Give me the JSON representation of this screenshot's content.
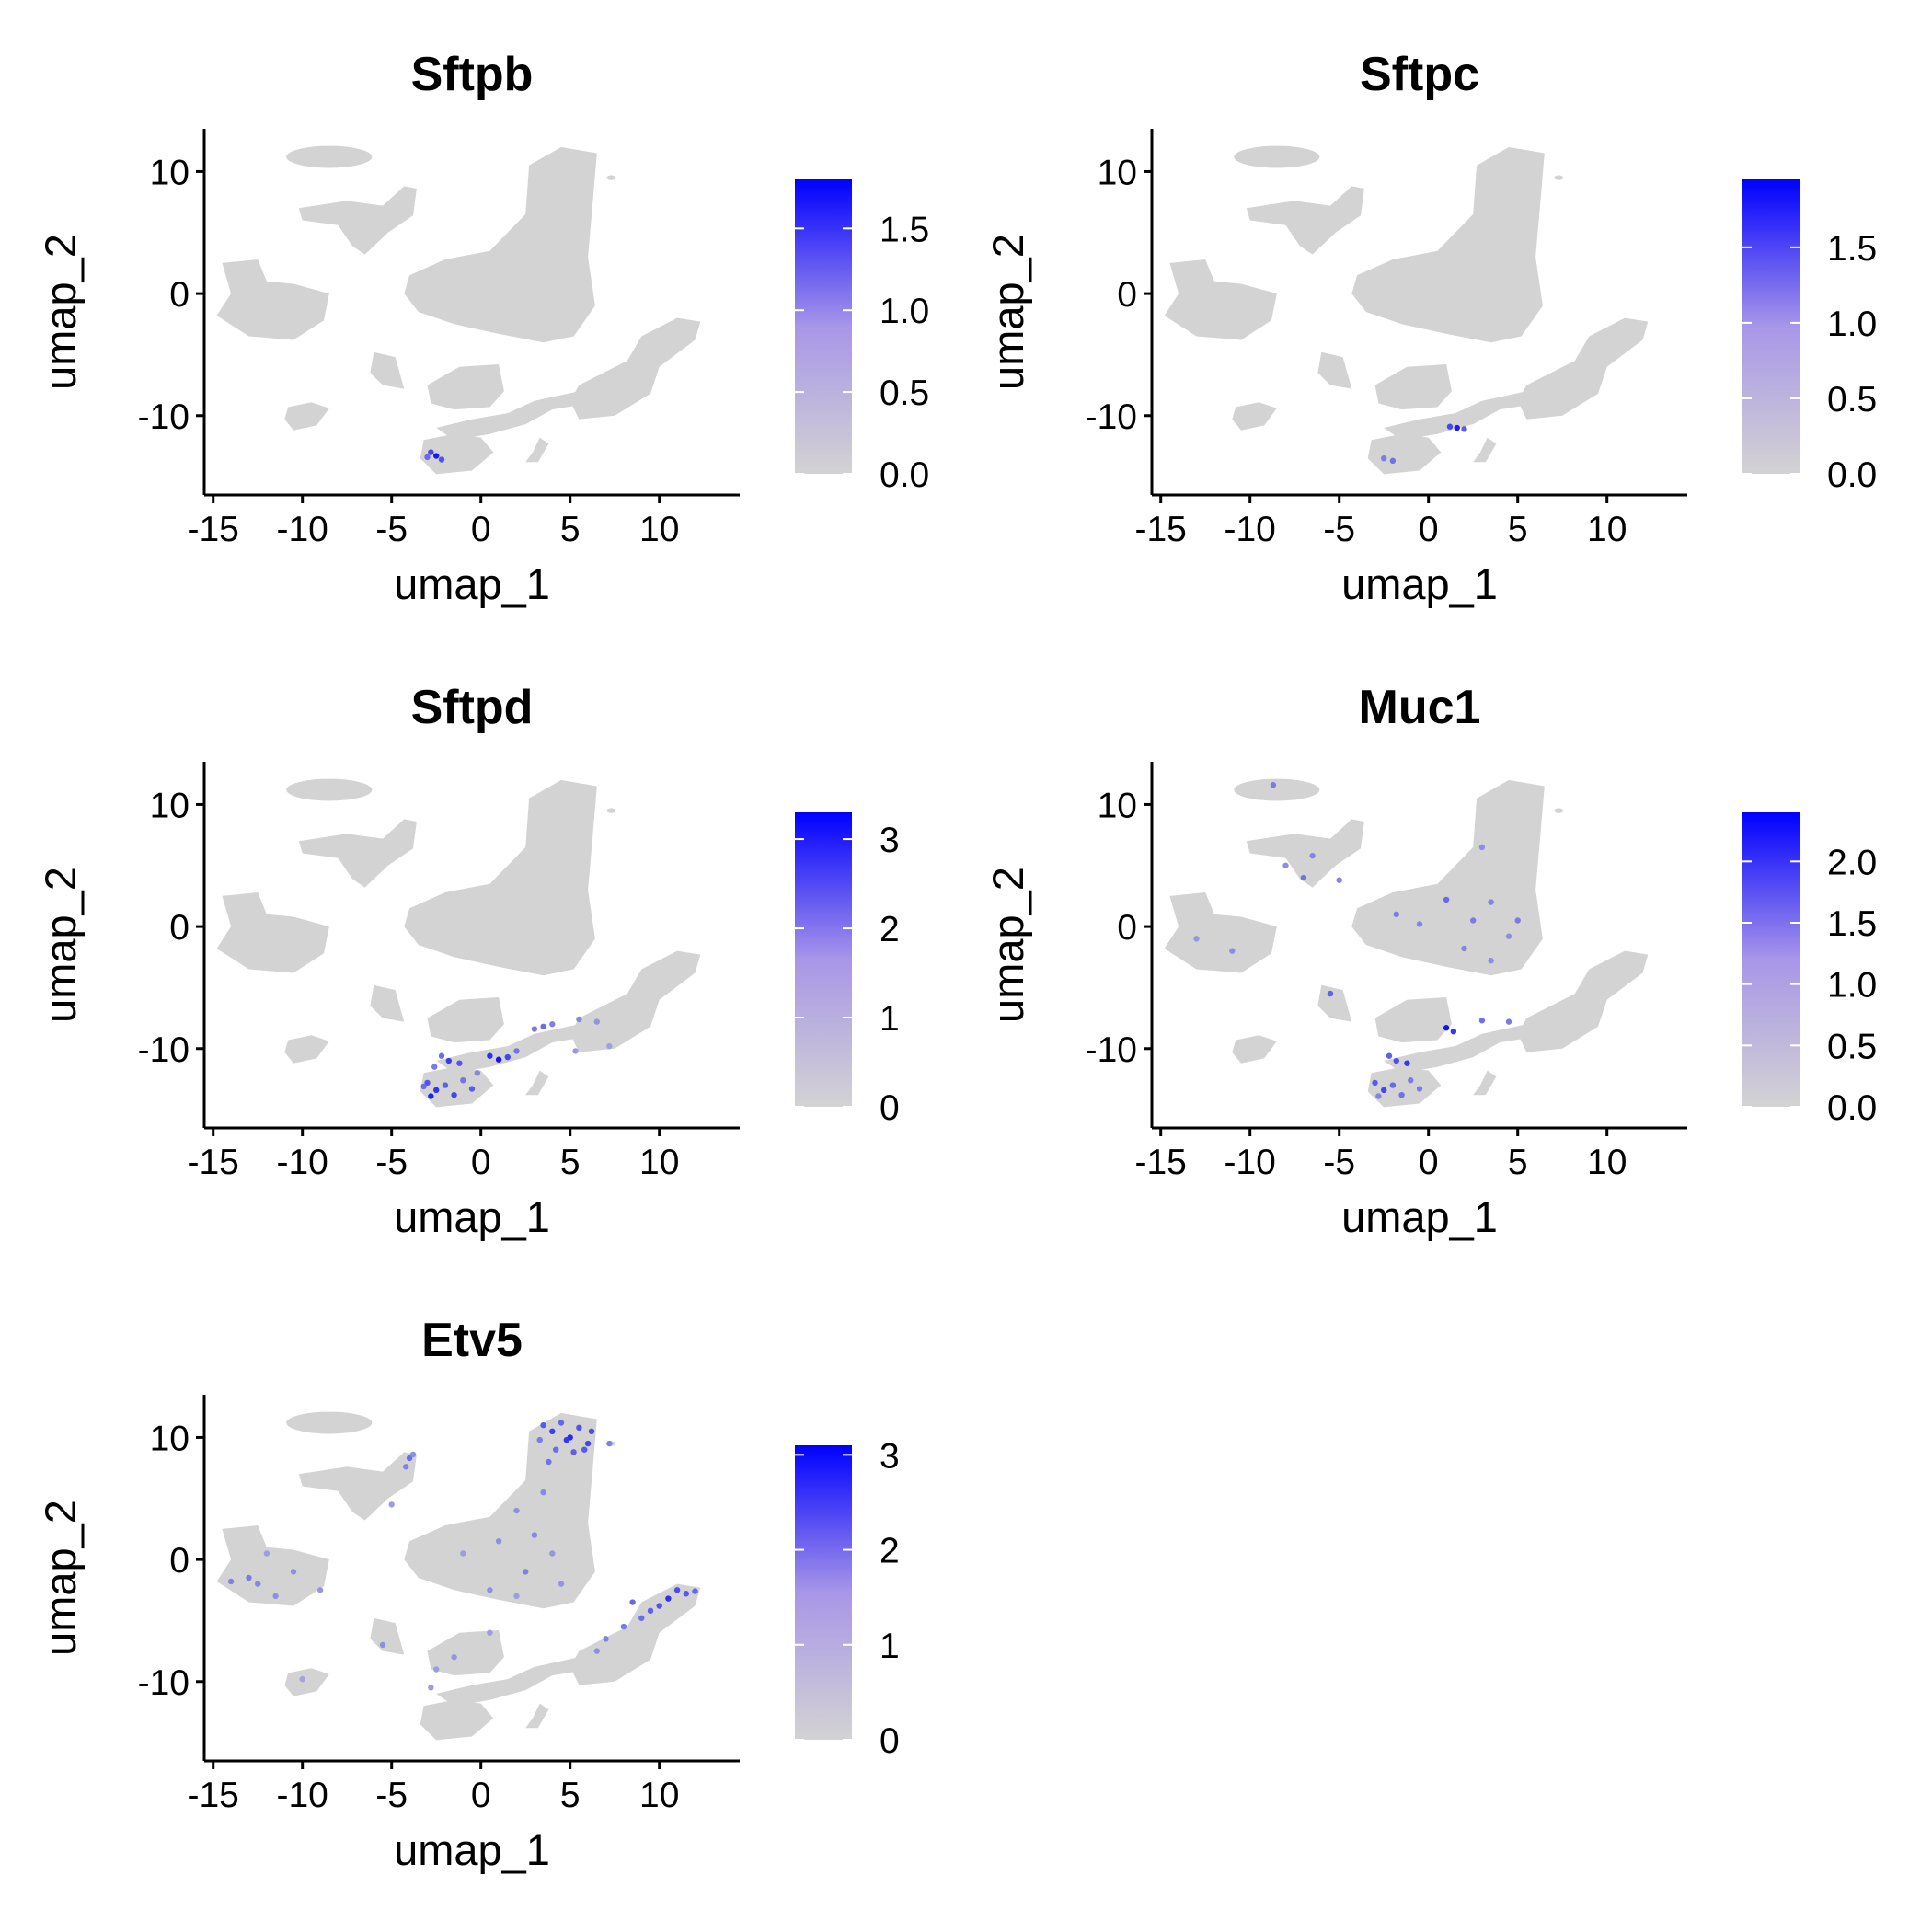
{
  "colors": {
    "low": "#d3d3d3",
    "high": "#0000ff",
    "cluster": "#d3d3d3",
    "axis": "#000000"
  },
  "chart_data": [
    {
      "type": "scatter",
      "title": "Sftpb",
      "xlabel": "umap_1",
      "ylabel": "umap_2",
      "xlim": [
        -15.5,
        14.5
      ],
      "ylim": [
        -16.5,
        13.5
      ],
      "xticks": [
        -15,
        -10,
        -5,
        0,
        5,
        10
      ],
      "yticks": [
        -10,
        0,
        10
      ],
      "legend": {
        "position": "right",
        "range": [
          0,
          1.8
        ],
        "ticks": [
          0.0,
          0.5,
          1.0,
          1.5
        ],
        "tick_labels": [
          "0.0",
          "0.5",
          "1.0",
          "1.5"
        ]
      },
      "expressing_points": [
        [
          -2.8,
          -13.0,
          1.2
        ],
        [
          -2.5,
          -13.3,
          1.6
        ],
        [
          -2.2,
          -13.6,
          1.1
        ],
        [
          -3.0,
          -13.4,
          0.9
        ]
      ]
    },
    {
      "type": "scatter",
      "title": "Sftpc",
      "xlabel": "umap_1",
      "ylabel": "umap_2",
      "xlim": [
        -15.5,
        14.5
      ],
      "ylim": [
        -16.5,
        13.5
      ],
      "xticks": [
        -15,
        -10,
        -5,
        0,
        5,
        10
      ],
      "yticks": [
        -10,
        0,
        10
      ],
      "legend": {
        "position": "right",
        "range": [
          0,
          1.95
        ],
        "ticks": [
          0.0,
          0.5,
          1.0,
          1.5
        ],
        "tick_labels": [
          "0.0",
          "0.5",
          "1.0",
          "1.5"
        ]
      },
      "expressing_points": [
        [
          1.2,
          -10.9,
          1.3
        ],
        [
          1.6,
          -11.0,
          1.7
        ],
        [
          2.0,
          -11.1,
          1.1
        ],
        [
          -2.5,
          -13.5,
          0.8
        ],
        [
          -2.0,
          -13.7,
          0.9
        ]
      ]
    },
    {
      "type": "scatter",
      "title": "Sftpd",
      "xlabel": "umap_1",
      "ylabel": "umap_2",
      "xlim": [
        -15.5,
        14.5
      ],
      "ylim": [
        -16.5,
        13.5
      ],
      "xticks": [
        -15,
        -10,
        -5,
        0,
        5,
        10
      ],
      "yticks": [
        -10,
        0,
        10
      ],
      "legend": {
        "position": "right",
        "range": [
          0,
          3.3
        ],
        "ticks": [
          0,
          1,
          2,
          3
        ],
        "tick_labels": [
          "0",
          "1",
          "2",
          "3"
        ]
      },
      "expressing_points": [
        [
          -3.0,
          -12.8,
          2.0
        ],
        [
          -2.5,
          -13.4,
          2.5
        ],
        [
          -2.0,
          -13.0,
          1.8
        ],
        [
          -1.5,
          -13.8,
          2.2
        ],
        [
          -1.0,
          -12.6,
          1.5
        ],
        [
          -2.8,
          -13.9,
          2.8
        ],
        [
          -0.5,
          -13.3,
          1.9
        ],
        [
          -3.2,
          -13.1,
          1.6
        ],
        [
          -1.8,
          -11.0,
          2.4
        ],
        [
          -1.2,
          -11.2,
          2.0
        ],
        [
          -2.2,
          -10.6,
          1.6
        ],
        [
          0.5,
          -10.6,
          2.6
        ],
        [
          1.0,
          -10.9,
          3.0
        ],
        [
          1.5,
          -10.7,
          2.2
        ],
        [
          2.0,
          -10.2,
          1.5
        ],
        [
          3.0,
          -8.4,
          1.4
        ],
        [
          4.0,
          -8.0,
          1.3
        ],
        [
          5.5,
          -7.6,
          1.2
        ],
        [
          3.5,
          -8.2,
          1.6
        ],
        [
          -0.2,
          -12.0,
          1.2
        ],
        [
          -2.6,
          -11.5,
          1.4
        ],
        [
          5.3,
          -10.2,
          0.9
        ],
        [
          7.2,
          -9.8,
          0.8
        ],
        [
          6.5,
          -7.8,
          1.0
        ]
      ]
    },
    {
      "type": "scatter",
      "title": "Muc1",
      "xlabel": "umap_1",
      "ylabel": "umap_2",
      "xlim": [
        -15.5,
        14.5
      ],
      "ylim": [
        -16.5,
        13.5
      ],
      "xticks": [
        -15,
        -10,
        -5,
        0,
        5,
        10
      ],
      "yticks": [
        -10,
        0,
        10
      ],
      "legend": {
        "position": "right",
        "range": [
          0,
          2.4
        ],
        "ticks": [
          0.0,
          0.5,
          1.0,
          1.5,
          2.0
        ],
        "tick_labels": [
          "0.0",
          "0.5",
          "1.0",
          "1.5",
          "2.0"
        ]
      },
      "expressing_points": [
        [
          -3.0,
          -12.8,
          1.4
        ],
        [
          -2.5,
          -13.4,
          1.6
        ],
        [
          -2.0,
          -13.0,
          1.2
        ],
        [
          -1.5,
          -13.8,
          1.1
        ],
        [
          -1.0,
          -12.6,
          1.0
        ],
        [
          -2.8,
          -13.9,
          0.9
        ],
        [
          -0.5,
          -13.3,
          1.0
        ],
        [
          -1.8,
          -11.0,
          1.5
        ],
        [
          -1.2,
          -11.2,
          1.8
        ],
        [
          -2.2,
          -10.6,
          1.3
        ],
        [
          1.0,
          -8.3,
          2.2
        ],
        [
          1.4,
          -8.6,
          1.8
        ],
        [
          3.0,
          -7.7,
          1.1
        ],
        [
          4.5,
          -7.8,
          1.0
        ],
        [
          -8.7,
          11.6,
          1.0
        ],
        [
          -7.0,
          4.0,
          1.1
        ],
        [
          -6.5,
          5.8,
          0.9
        ],
        [
          -8.0,
          5.0,
          0.8
        ],
        [
          -5.0,
          3.8,
          0.9
        ],
        [
          1.0,
          2.2,
          1.2
        ],
        [
          2.5,
          0.5,
          1.0
        ],
        [
          3.5,
          2.0,
          0.9
        ],
        [
          -1.8,
          1.0,
          1.0
        ],
        [
          4.5,
          -0.8,
          0.8
        ],
        [
          2.0,
          -1.8,
          0.9
        ],
        [
          5.0,
          0.5,
          1.0
        ],
        [
          3.0,
          6.5,
          0.8
        ],
        [
          -0.5,
          0.2,
          0.9
        ],
        [
          -11.0,
          -2.0,
          0.8
        ],
        [
          -13.0,
          -1.0,
          0.7
        ],
        [
          -5.5,
          -5.5,
          1.3
        ],
        [
          3.5,
          -2.8,
          0.8
        ]
      ]
    },
    {
      "type": "scatter",
      "title": "Etv5",
      "xlabel": "umap_1",
      "ylabel": "umap_2",
      "xlim": [
        -15.5,
        14.5
      ],
      "ylim": [
        -16.5,
        13.5
      ],
      "xticks": [
        -15,
        -10,
        -5,
        0,
        5,
        10
      ],
      "yticks": [
        -10,
        0,
        10
      ],
      "legend": {
        "position": "right",
        "range": [
          0,
          3.1
        ],
        "ticks": [
          0,
          1,
          2,
          3
        ],
        "tick_labels": [
          "0",
          "1",
          "2",
          "3"
        ]
      },
      "expressing_points": [
        [
          3.5,
          11.0,
          1.8
        ],
        [
          4.0,
          10.5,
          2.2
        ],
        [
          4.5,
          11.2,
          1.6
        ],
        [
          5.0,
          10.0,
          2.5
        ],
        [
          5.5,
          10.8,
          1.9
        ],
        [
          6.0,
          9.5,
          2.1
        ],
        [
          4.2,
          9.0,
          1.5
        ],
        [
          5.2,
          8.8,
          1.7
        ],
        [
          6.2,
          10.5,
          2.0
        ],
        [
          3.8,
          8.0,
          1.4
        ],
        [
          4.8,
          9.8,
          2.3
        ],
        [
          5.8,
          9.0,
          1.8
        ],
        [
          3.3,
          9.8,
          1.3
        ],
        [
          7.2,
          9.5,
          1.2
        ],
        [
          2.0,
          4.0,
          1.0
        ],
        [
          3.0,
          2.0,
          1.1
        ],
        [
          4.0,
          0.5,
          0.9
        ],
        [
          1.0,
          1.5,
          1.0
        ],
        [
          2.5,
          -1.0,
          1.2
        ],
        [
          4.5,
          -2.0,
          0.9
        ],
        [
          -1.0,
          0.5,
          0.8
        ],
        [
          0.5,
          -2.5,
          1.0
        ],
        [
          3.5,
          5.5,
          1.1
        ],
        [
          2.0,
          -3.0,
          0.8
        ],
        [
          11.0,
          -2.5,
          2.0
        ],
        [
          11.5,
          -2.8,
          1.8
        ],
        [
          10.5,
          -3.2,
          2.4
        ],
        [
          12.0,
          -2.6,
          1.6
        ],
        [
          10.0,
          -3.8,
          1.9
        ],
        [
          9.5,
          -4.2,
          1.7
        ],
        [
          9.0,
          -4.8,
          1.5
        ],
        [
          8.0,
          -5.5,
          1.3
        ],
        [
          7.0,
          -6.5,
          1.2
        ],
        [
          6.5,
          -7.5,
          1.0
        ],
        [
          8.5,
          -3.5,
          1.6
        ],
        [
          -13.0,
          -1.5,
          1.3
        ],
        [
          -12.5,
          -2.0,
          1.1
        ],
        [
          -14.0,
          -1.8,
          1.2
        ],
        [
          -10.5,
          -1.0,
          1.0
        ],
        [
          -9.0,
          -2.5,
          0.9
        ],
        [
          -11.5,
          -3.0,
          1.0
        ],
        [
          -12.0,
          0.5,
          0.8
        ],
        [
          -5.0,
          4.5,
          0.8
        ],
        [
          -4.0,
          8.3,
          1.5
        ],
        [
          -4.2,
          7.6,
          1.2
        ],
        [
          -3.8,
          8.6,
          1.0
        ],
        [
          -5.5,
          -7.0,
          1.0
        ],
        [
          -2.5,
          -9.0,
          0.8
        ],
        [
          -1.5,
          -8.0,
          0.9
        ],
        [
          0.5,
          -6.0,
          0.8
        ],
        [
          -10.0,
          -9.8,
          0.7
        ],
        [
          -2.8,
          -10.5,
          0.8
        ]
      ]
    }
  ]
}
